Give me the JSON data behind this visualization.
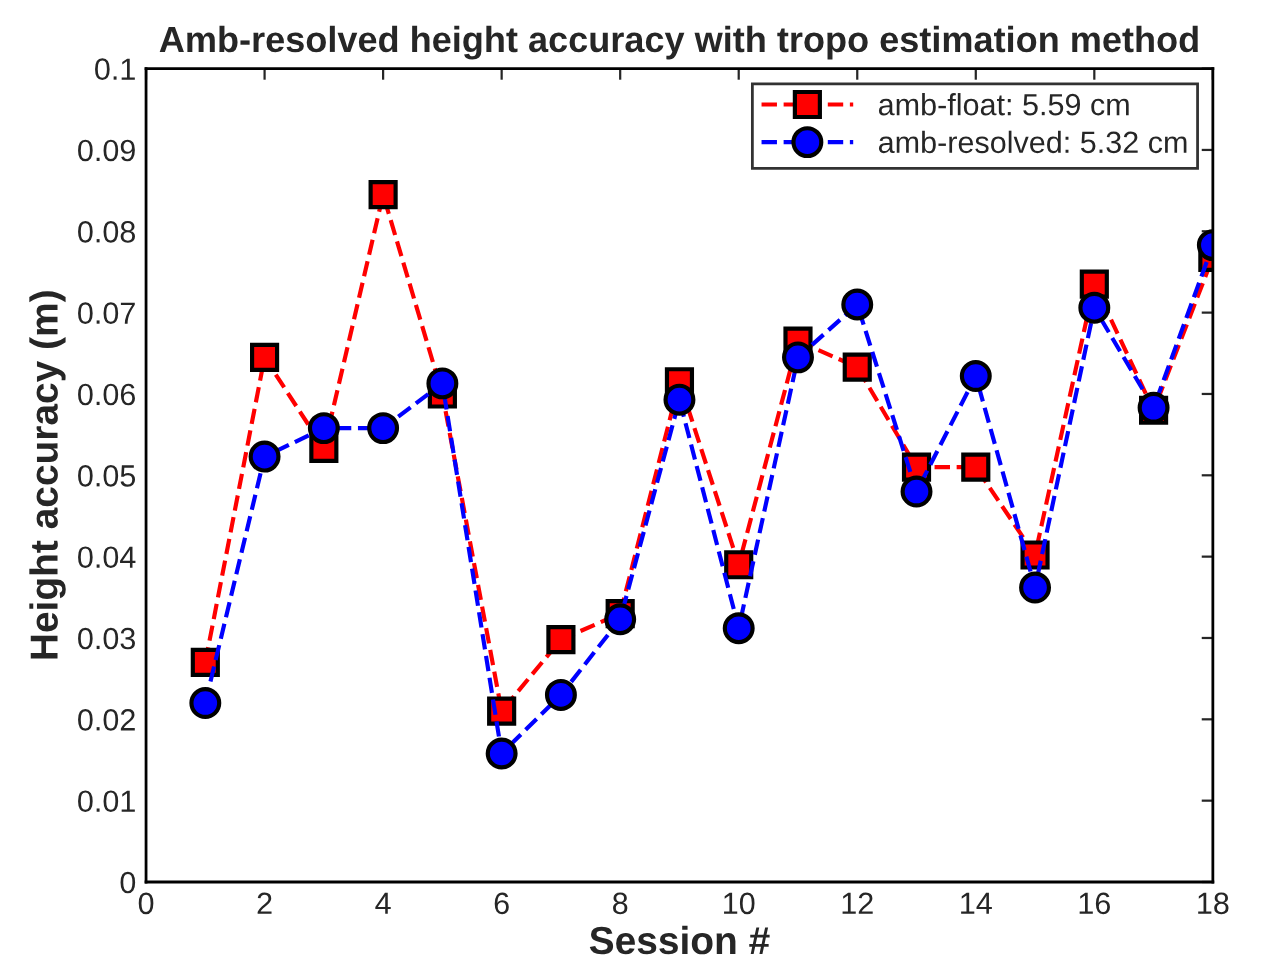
{
  "chart_data": {
    "type": "line",
    "title": "Amb-resolved height accuracy with tropo estimation method",
    "xlabel": "Session #",
    "ylabel": "Height accuracy (m)",
    "x": [
      1,
      2,
      3,
      4,
      5,
      6,
      7,
      8,
      9,
      10,
      11,
      12,
      13,
      14,
      15,
      16,
      17,
      18
    ],
    "series": [
      {
        "name": "amb-float: 5.59 cm",
        "color": "#ff0000",
        "marker": "square",
        "values": [
          0.027,
          0.0645,
          0.0533,
          0.0845,
          0.06,
          0.021,
          0.0298,
          0.033,
          0.0615,
          0.039,
          0.0665,
          0.0633,
          0.051,
          0.051,
          0.0402,
          0.0735,
          0.058,
          0.0768
        ]
      },
      {
        "name": "amb-resolved: 5.32 cm",
        "color": "#0000ff",
        "marker": "circle",
        "values": [
          0.022,
          0.0523,
          0.0558,
          0.0558,
          0.0613,
          0.0158,
          0.023,
          0.0323,
          0.0593,
          0.0312,
          0.0645,
          0.071,
          0.048,
          0.0622,
          0.0362,
          0.0706,
          0.0583,
          0.0783
        ]
      }
    ],
    "xlim": [
      0,
      18
    ],
    "xticks": [
      0,
      2,
      4,
      6,
      8,
      10,
      12,
      14,
      16,
      18
    ],
    "ylim": [
      0,
      0.1
    ],
    "yticks": [
      0,
      0.01,
      0.02,
      0.03,
      0.04,
      0.05,
      0.06,
      0.07,
      0.08,
      0.09,
      0.1
    ],
    "grid": false,
    "legend": "top right",
    "line_style": "dashed"
  }
}
